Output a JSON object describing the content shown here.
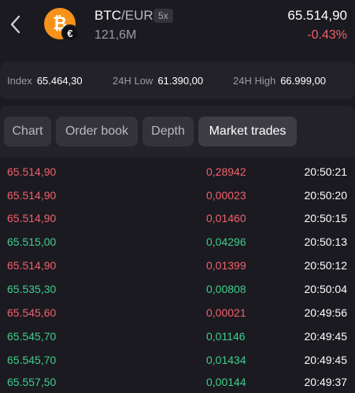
{
  "header": {
    "base": "BTC",
    "separator": "/",
    "quote": "EUR",
    "leverage": "5x",
    "volume": "121,6M",
    "price": "65.514,90",
    "change": "-0.43%",
    "coin_icon": "bitcoin-icon",
    "fiat_icon": "euro-icon"
  },
  "stats": {
    "index_label": "Index",
    "index_value": "65.464,30",
    "low_label": "24H Low",
    "low_value": "61.390,00",
    "high_label": "24H High",
    "high_value": "66.999,00"
  },
  "tabs": [
    {
      "label": "Chart",
      "active": false
    },
    {
      "label": "Order book",
      "active": false
    },
    {
      "label": "Depth",
      "active": false
    },
    {
      "label": "Market trades",
      "active": true
    }
  ],
  "trades": [
    {
      "price": "65.514,90",
      "amount": "0,28942",
      "time": "20:50:21",
      "side": "sell"
    },
    {
      "price": "65.514,90",
      "amount": "0,00023",
      "time": "20:50:20",
      "side": "sell"
    },
    {
      "price": "65.514,90",
      "amount": "0,01460",
      "time": "20:50:15",
      "side": "sell"
    },
    {
      "price": "65.515,00",
      "amount": "0,04296",
      "time": "20:50:13",
      "side": "buy"
    },
    {
      "price": "65.514,90",
      "amount": "0,01399",
      "time": "20:50:12",
      "side": "sell"
    },
    {
      "price": "65.535,30",
      "amount": "0,00808",
      "time": "20:50:04",
      "side": "buy"
    },
    {
      "price": "65.545,60",
      "amount": "0,00021",
      "time": "20:49:56",
      "side": "sell"
    },
    {
      "price": "65.545,70",
      "amount": "0,01146",
      "time": "20:49:45",
      "side": "buy"
    },
    {
      "price": "65.545,70",
      "amount": "0,01434",
      "time": "20:49:45",
      "side": "buy"
    },
    {
      "price": "65.557,50",
      "amount": "0,00144",
      "time": "20:49:37",
      "side": "buy"
    }
  ],
  "colors": {
    "sell": "#f0616d",
    "buy": "#3ecf8e",
    "bitcoin": "#f7931a",
    "background": "#1b1a20"
  }
}
